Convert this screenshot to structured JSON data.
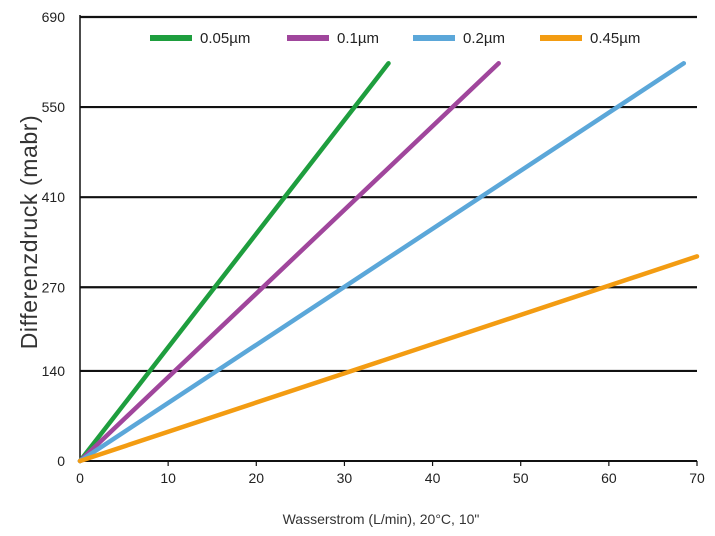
{
  "chart_data": {
    "type": "line",
    "title": "",
    "xlabel": "Wasserstrom (L/min), 20°C, 10\"",
    "ylabel": "Differenzdruck (mabr)",
    "xlim": [
      0,
      70
    ],
    "ylim": [
      0,
      690
    ],
    "xticks": [
      0,
      10,
      20,
      30,
      40,
      50,
      60,
      70
    ],
    "yticks": [
      0,
      140,
      270,
      410,
      550,
      690
    ],
    "xtick_labels": [
      "0",
      "10",
      "20",
      "30",
      "40",
      "50",
      "60",
      "70"
    ],
    "ytick_labels": [
      "0",
      "140",
      "270",
      "410",
      "550",
      "690"
    ],
    "grid": "horizontal",
    "legend_position": "top",
    "series": [
      {
        "name": "0.05µm",
        "color": "#1e9e3e",
        "x": [
          0,
          35
        ],
        "y": [
          0,
          618
        ]
      },
      {
        "name": "0.1µm",
        "color": "#a0469c",
        "x": [
          0,
          47.5
        ],
        "y": [
          0,
          618
        ]
      },
      {
        "name": "0.2µm",
        "color": "#5ba7d9",
        "x": [
          0,
          68.5
        ],
        "y": [
          0,
          618
        ]
      },
      {
        "name": "0.45µm",
        "color": "#f39c12",
        "x": [
          0,
          70
        ],
        "y": [
          0,
          318
        ]
      }
    ]
  }
}
